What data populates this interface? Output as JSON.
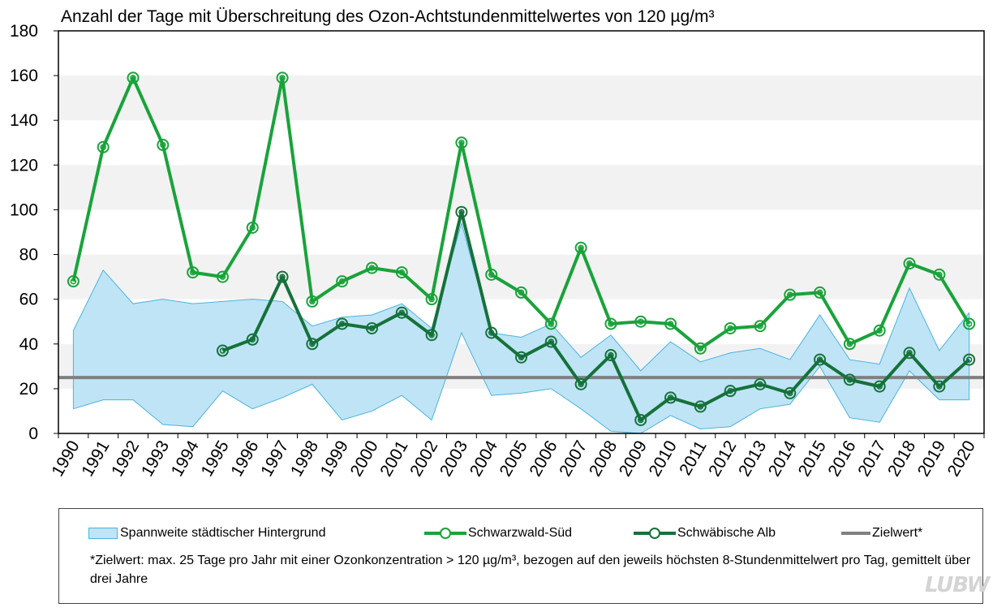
{
  "chart_data": {
    "type": "line",
    "title": "Anzahl der Tage mit Überschreitung des Ozon-Achtstundenmittelwertes von 120 µg/m³",
    "xlabel": "",
    "ylabel": "",
    "ylim": [
      0,
      180
    ],
    "yticks": [
      0,
      20,
      40,
      60,
      80,
      100,
      120,
      140,
      160,
      180
    ],
    "categories": [
      "1990",
      "1991",
      "1992",
      "1993",
      "1994",
      "1995",
      "1996",
      "1997",
      "1998",
      "1999",
      "2000",
      "2001",
      "2002",
      "2003",
      "2004",
      "2005",
      "2006",
      "2007",
      "2008",
      "2009",
      "2010",
      "2011",
      "2012",
      "2013",
      "2014",
      "2015",
      "2016",
      "2017",
      "2018",
      "2019",
      "2020"
    ],
    "band": {
      "name": "Spannweite städtischer Hintergrund",
      "color": "#bfe4f6",
      "edge_color": "#4ab3de",
      "upper": [
        46,
        73,
        58,
        60,
        58,
        59,
        60,
        59,
        48,
        52,
        53,
        58,
        47,
        94,
        45,
        43,
        49,
        34,
        44,
        28,
        41,
        32,
        36,
        38,
        33,
        53,
        33,
        31,
        65,
        37,
        54
      ],
      "lower": [
        11,
        15,
        15,
        4,
        3,
        19,
        11,
        16,
        22,
        6,
        10,
        17,
        6,
        45,
        17,
        18,
        20,
        11,
        1,
        0,
        8,
        2,
        3,
        11,
        13,
        30,
        7,
        5,
        28,
        15,
        15
      ]
    },
    "series": [
      {
        "name": "Schwarzwald-Süd",
        "color": "#19a33a",
        "values": [
          68,
          128,
          159,
          129,
          72,
          70,
          92,
          159,
          59,
          68,
          74,
          72,
          60,
          130,
          71,
          63,
          49,
          83,
          49,
          50,
          49,
          38,
          47,
          48,
          62,
          63,
          40,
          46,
          76,
          71,
          49
        ]
      },
      {
        "name": "Schwäbische Alb",
        "color": "#15713a",
        "values": [
          null,
          null,
          null,
          null,
          null,
          37,
          42,
          70,
          40,
          49,
          47,
          54,
          44,
          99,
          45,
          34,
          41,
          22,
          35,
          6,
          16,
          12,
          19,
          22,
          18,
          33,
          24,
          21,
          36,
          21,
          33
        ]
      }
    ],
    "target": {
      "name": "Zielwert*",
      "value": 25,
      "color": "#808080"
    },
    "grid": "alternating horizontal bands",
    "legend_position": "bottom"
  },
  "legend": {
    "band_label": "Spannweite städtischer Hintergrund",
    "series1_label": "Schwarzwald-Süd",
    "series2_label": "Schwäbische Alb",
    "target_label": "Zielwert*",
    "footnote": "*Zielwert: max. 25 Tage pro Jahr mit einer Ozonkonzentration > 120 µg/m³, bezogen auf den jeweils höchsten 8-Stundenmittelwert pro Tag, gemittelt über drei Jahre"
  },
  "logo": {
    "text": "LUBW"
  }
}
